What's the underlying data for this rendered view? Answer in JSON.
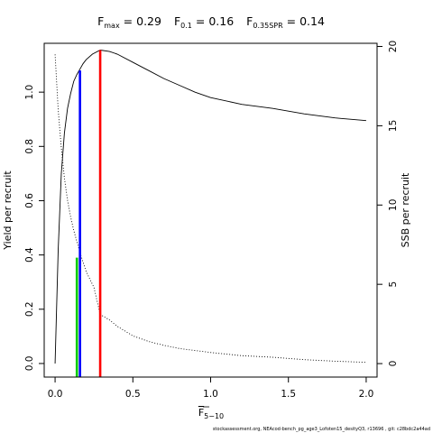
{
  "chart_data": {
    "type": "line",
    "title_parts": [
      {
        "main": "F",
        "sub": "max",
        "rest": " = 0.29"
      },
      {
        "main": "F",
        "sub": "0.1",
        "rest": " = 0.16"
      },
      {
        "main": "F",
        "sub": "0.35SPR",
        "rest": " = 0.14"
      }
    ],
    "xlabel_main": "F",
    "xlabel_sub": "5−10",
    "ylabel_left": "Yield per recruit",
    "ylabel_right": "SSB per recruit",
    "xlim": [
      -0.07,
      2.07
    ],
    "ylim_left": [
      -0.05,
      1.18
    ],
    "ylim_right": [
      -0.85,
      20.2
    ],
    "x_ticks": [
      0,
      0.5,
      1,
      1.5,
      2
    ],
    "x_tick_labels": [
      "0.0",
      "0.5",
      "1.0",
      "1.5",
      "2.0"
    ],
    "y_left_ticks": [
      0,
      0.2,
      0.4,
      0.6,
      0.8,
      1.0
    ],
    "y_left_tick_labels": [
      "0.0",
      "0.2",
      "0.4",
      "0.6",
      "0.8",
      "1.0"
    ],
    "y_right_ticks": [
      0,
      5,
      10,
      15,
      20
    ],
    "y_right_tick_labels": [
      "0",
      "5",
      "10",
      "15",
      "20"
    ],
    "series": [
      {
        "axis": "left",
        "style": "solid",
        "x": [
          0,
          0.02,
          0.04,
          0.06,
          0.08,
          0.1,
          0.12,
          0.14,
          0.16,
          0.18,
          0.2,
          0.24,
          0.29,
          0.35,
          0.4,
          0.5,
          0.6,
          0.7,
          0.8,
          0.9,
          1.0,
          1.2,
          1.4,
          1.6,
          1.8,
          2.0
        ],
        "y": [
          0.0,
          0.42,
          0.7,
          0.85,
          0.94,
          0.995,
          1.04,
          1.065,
          1.085,
          1.105,
          1.12,
          1.14,
          1.155,
          1.15,
          1.14,
          1.11,
          1.08,
          1.05,
          1.025,
          1.0,
          0.98,
          0.955,
          0.94,
          0.92,
          0.905,
          0.895
        ]
      },
      {
        "axis": "right",
        "style": "dotted",
        "x": [
          0,
          0.02,
          0.04,
          0.06,
          0.08,
          0.1,
          0.12,
          0.14,
          0.16,
          0.2,
          0.25,
          0.29,
          0.35,
          0.4,
          0.5,
          0.6,
          0.7,
          0.8,
          1.0,
          1.2,
          1.4,
          1.6,
          1.8,
          2.0
        ],
        "y": [
          19.5,
          16.0,
          13.6,
          11.7,
          10.3,
          9.25,
          8.4,
          7.7,
          7.0,
          5.8,
          4.8,
          3.1,
          2.75,
          2.35,
          1.75,
          1.4,
          1.15,
          0.95,
          0.7,
          0.5,
          0.4,
          0.25,
          0.15,
          0.08
        ]
      }
    ],
    "vertical_segments": [
      {
        "x": 0.29,
        "y0": 0,
        "y1": 1.155,
        "color": "#ff0000"
      },
      {
        "x": 0.16,
        "y0": 0,
        "y1": 1.08,
        "color": "#0000ff"
      },
      {
        "x": 0.14,
        "y0": 0,
        "y1": 0.39,
        "color": "#00cc00"
      }
    ],
    "footer": "stockassessment.org, NEAcod-bench_pg_age3_Lofoten15_desityQ3, r13696 , git: c28bdc2a44ad"
  }
}
